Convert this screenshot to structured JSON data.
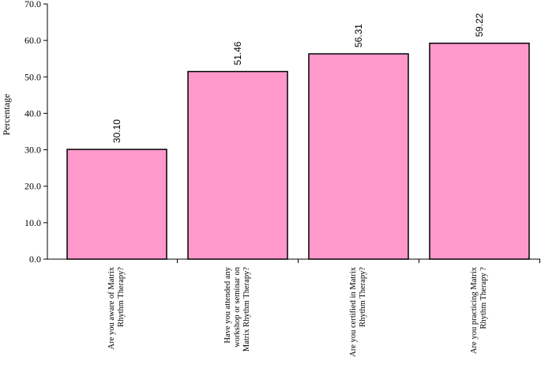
{
  "chart_data": {
    "type": "bar",
    "y_label": "Percentage",
    "categories": [
      "Are you aware of Matrix Rhythm Therapy?",
      "Have you attended any workshop or seminar on Matrix Rhythm Therapy?",
      "Are you certified in Matrix Rhythm Therapy?",
      "Are you practicing Matrix Rhythm Therapy ?"
    ],
    "values": [
      30.1,
      51.46,
      56.31,
      59.22
    ],
    "value_labels": [
      "30.10",
      "51.46",
      "56.31",
      "59.22"
    ],
    "color": "#ff99cc",
    "ylim": [
      0,
      70
    ],
    "yticks": [
      {
        "value": 0,
        "label": "0.0"
      },
      {
        "value": 10,
        "label": "10.0"
      },
      {
        "value": 20,
        "label": "20.0"
      },
      {
        "value": 30,
        "label": "30.0"
      },
      {
        "value": 40,
        "label": "40.0"
      },
      {
        "value": 50,
        "label": "50.0"
      },
      {
        "value": 60,
        "label": "60.0"
      },
      {
        "value": 70,
        "label": "70.0"
      }
    ],
    "grid": false
  }
}
